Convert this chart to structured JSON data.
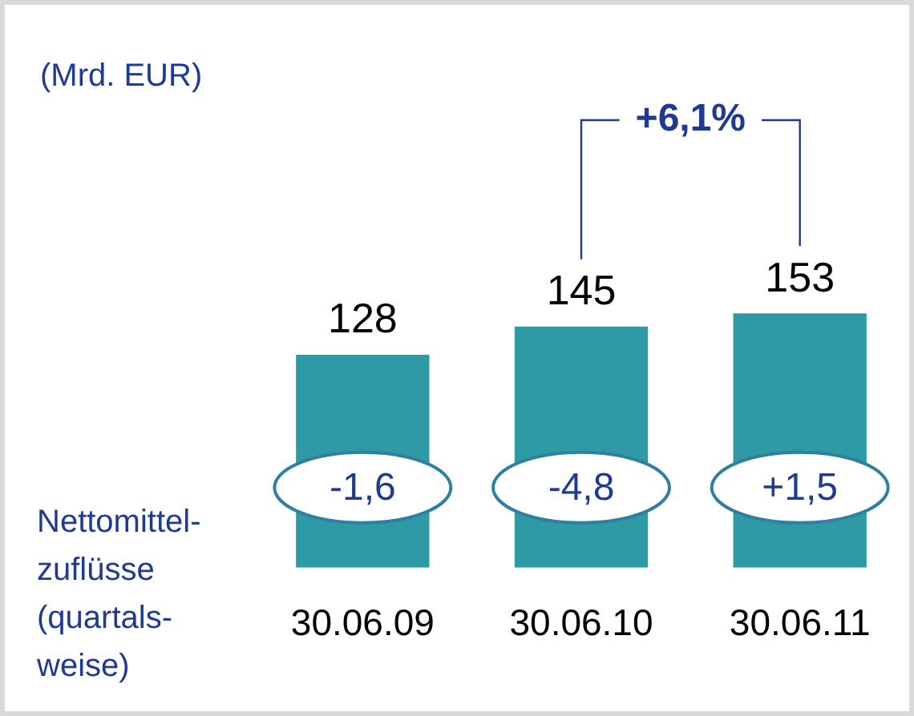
{
  "chart_data": {
    "type": "bar",
    "categories": [
      "30.06.09",
      "30.06.10",
      "30.06.11"
    ],
    "values": [
      128,
      145,
      153
    ],
    "color": "#2e9aa5",
    "data_labels": true,
    "grid": false,
    "legend": false,
    "annotations": [
      "+6,1%",
      "(Mrd. EUR)",
      "Nettomittel-zuflüsse (quartals-weise)",
      "-1,6",
      "-4,8",
      "+1,5"
    ]
  }
}
